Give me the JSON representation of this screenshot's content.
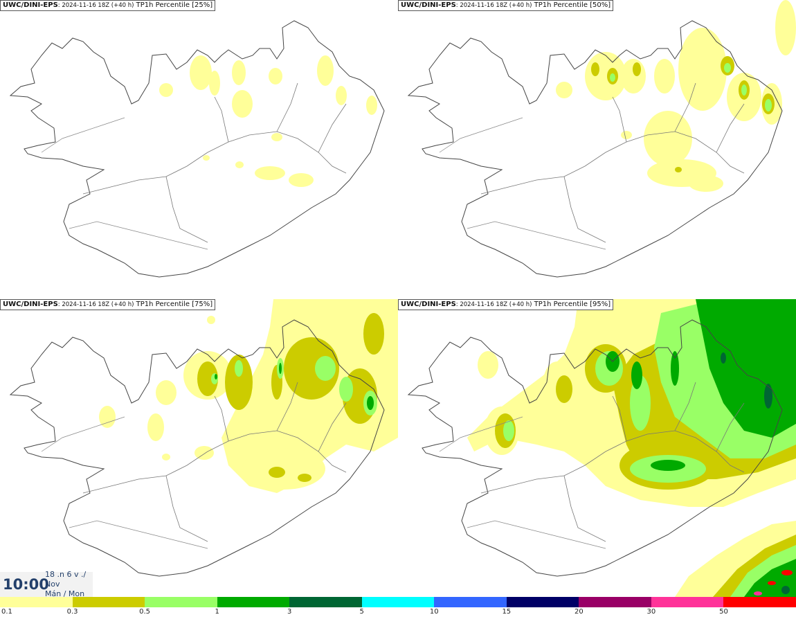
{
  "panels": [
    {
      "model": "UWC/DINI-EPS",
      "run": ": 2024-11-16 18Z (+40 h)",
      "field": "TP1h Percentile [25%]"
    },
    {
      "model": "UWC/DINI-EPS",
      "run": ": 2024-11-16 18Z (+40 h)",
      "field": "TP1h Percentile [50%]"
    },
    {
      "model": "UWC/DINI-EPS",
      "run": ": 2024-11-16 18Z (+40 h)",
      "field": "TP1h Percentile [75%]"
    },
    {
      "model": "UWC/DINI-EPS",
      "run": ": 2024-11-16 18Z (+40 h)",
      "field": "TP1h Percentile [95%]"
    }
  ],
  "clock": {
    "time": "10:00",
    "line1": "18 .n 6 v ./",
    "line2": "Nov",
    "line3": "Mán / Mon"
  },
  "legend": {
    "labels": [
      "0.1",
      "0.3",
      "0.5",
      "1",
      "3",
      "5",
      "10",
      "15",
      "20",
      "30",
      "50"
    ],
    "colors": [
      "#ffff99",
      "#cccc00",
      "#99ff66",
      "#00aa00",
      "#006633",
      "#00ffff",
      "#3366ff",
      "#000066",
      "#990066",
      "#ff3399",
      "#ff0000"
    ]
  }
}
